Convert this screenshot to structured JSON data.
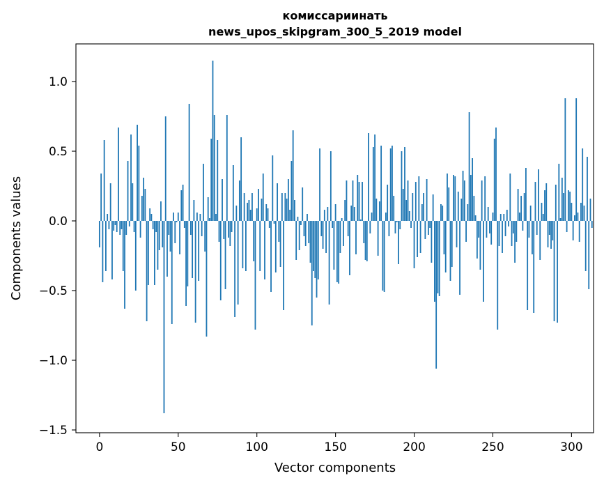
{
  "chart_data": {
    "type": "bar",
    "title": [
      "комиссариинать",
      "news_upos_skipgram_300_5_2019 model"
    ],
    "xlabel": "Vector components",
    "ylabel": "Components values",
    "xlim": [
      -15,
      314
    ],
    "ylim": [
      -1.52,
      1.27
    ],
    "xticks": [
      0,
      50,
      100,
      150,
      200,
      250,
      300
    ],
    "xtick_labels": [
      "0",
      "50",
      "100",
      "150",
      "200",
      "250",
      "300"
    ],
    "yticks": [
      -1.5,
      -1.0,
      -0.5,
      0.0,
      0.5,
      1.0
    ],
    "ytick_labels": [
      "−1.5",
      "−1.0",
      "−0.5",
      "0.0",
      "0.5",
      "1.0"
    ],
    "grid": false,
    "bar_color": "#1f77b4",
    "series": [
      {
        "name": "components",
        "values": [
          -0.19,
          0.34,
          -0.44,
          0.58,
          -0.36,
          0.05,
          -0.06,
          0.27,
          -0.42,
          -0.07,
          -0.03,
          -0.08,
          0.67,
          -0.1,
          -0.06,
          -0.36,
          -0.63,
          -0.1,
          0.43,
          -0.04,
          0.62,
          0.27,
          -0.08,
          -0.5,
          0.69,
          0.54,
          -0.12,
          0.18,
          0.31,
          0.23,
          -0.72,
          -0.46,
          0.09,
          0.05,
          -0.06,
          -0.46,
          -0.08,
          -0.35,
          -0.21,
          0.14,
          -0.19,
          -1.38,
          0.75,
          -0.4,
          -0.1,
          -0.22,
          -0.74,
          0.06,
          -0.16,
          -0.01,
          0.06,
          -0.24,
          0.22,
          0.26,
          -0.05,
          -0.61,
          -0.47,
          0.84,
          -0.1,
          -0.41,
          0.15,
          -0.73,
          0.06,
          -0.43,
          0.05,
          -0.11,
          0.41,
          -0.22,
          -0.83,
          0.17,
          0.02,
          0.59,
          1.15,
          0.76,
          0.05,
          0.58,
          -0.15,
          -0.57,
          0.3,
          -0.13,
          -0.49,
          0.76,
          -0.12,
          -0.18,
          -0.08,
          0.4,
          -0.69,
          0.11,
          -0.6,
          0.29,
          0.6,
          -0.34,
          0.2,
          -0.36,
          0.13,
          0.15,
          0.08,
          0.2,
          -0.29,
          -0.78,
          0.09,
          0.23,
          -0.36,
          0.16,
          0.34,
          -0.42,
          0.12,
          0.09,
          -0.05,
          -0.51,
          0.47,
          -0.02,
          -0.37,
          0.27,
          -0.15,
          -0.33,
          0.2,
          -0.64,
          0.2,
          0.16,
          0.3,
          0.08,
          0.43,
          0.65,
          0.15,
          -0.28,
          0.03,
          -0.21,
          -0.03,
          0.24,
          -0.11,
          -0.18,
          0.05,
          -0.16,
          -0.3,
          -0.75,
          -0.36,
          -0.41,
          -0.55,
          -0.42,
          0.52,
          -0.11,
          -0.2,
          0.08,
          -0.23,
          0.1,
          -0.6,
          0.5,
          -0.05,
          -0.35,
          0.12,
          -0.44,
          -0.45,
          -0.23,
          0.02,
          -0.18,
          0.15,
          0.29,
          -0.11,
          -0.39,
          0.11,
          0.29,
          0.1,
          -0.24,
          0.33,
          0.28,
          0.01,
          0.28,
          -0.16,
          -0.28,
          -0.29,
          0.63,
          -0.09,
          0.06,
          0.53,
          0.62,
          0.16,
          -0.25,
          0.14,
          0.54,
          -0.5,
          -0.51,
          0.06,
          0.26,
          -0.11,
          0.52,
          0.54,
          0.18,
          -0.09,
          -0.01,
          -0.31,
          -0.06,
          0.5,
          0.23,
          0.53,
          0.15,
          0.29,
          0.07,
          -0.05,
          0.2,
          -0.34,
          0.28,
          -0.26,
          0.32,
          -0.23,
          0.12,
          0.2,
          -0.13,
          0.3,
          -0.1,
          -0.05,
          -0.3,
          0.19,
          -0.58,
          -1.06,
          -0.52,
          -0.54,
          0.12,
          0.11,
          -0.24,
          -0.37,
          0.34,
          0.24,
          -0.43,
          -0.33,
          0.33,
          0.32,
          -0.19,
          0.21,
          -0.53,
          0.16,
          0.36,
          0.29,
          -0.15,
          0.12,
          0.78,
          0.33,
          0.45,
          0.18,
          0.04,
          -0.27,
          -0.12,
          -0.35,
          0.29,
          -0.58,
          0.32,
          -0.12,
          0.1,
          -0.09,
          -0.17,
          0.06,
          0.59,
          0.67,
          -0.78,
          -0.18,
          0.05,
          -0.23,
          0.05,
          -0.11,
          0.08,
          -0.04,
          0.34,
          -0.18,
          -0.09,
          -0.3,
          -0.15,
          0.23,
          0.06,
          0.18,
          -0.07,
          0.2,
          0.38,
          -0.64,
          -0.12,
          0.11,
          -0.24,
          -0.66,
          0.28,
          -0.1,
          0.37,
          -0.28,
          0.13,
          0.05,
          0.22,
          0.27,
          -0.19,
          -0.1,
          -0.2,
          -0.14,
          -0.72,
          0.26,
          -0.73,
          0.41,
          0.02,
          0.31,
          0.2,
          0.88,
          -0.08,
          0.22,
          0.21,
          0.13,
          -0.14,
          0.04,
          0.88,
          0.06,
          -0.15,
          0.13,
          0.52,
          0.11,
          -0.36,
          0.46,
          -0.49,
          0.16,
          -0.05
        ]
      }
    ]
  }
}
